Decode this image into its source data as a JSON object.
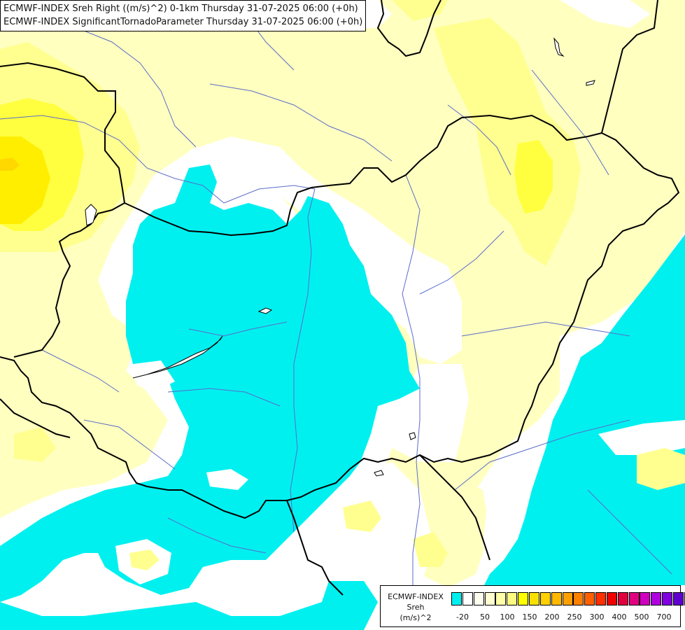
{
  "title_lines": [
    "ECMWF-INDEX Sreh Right ((m/s)^2) 0-1km Thursday 31-07-2025 06:00 (+0h)",
    "ECMWF-INDEX SignificantTornadoParameter Thursday 31-07-2025 06:00 (+0h)"
  ],
  "legend": {
    "line1": "ECMWF-INDEX",
    "line2": "Sreh",
    "line3": "(m/s)^2",
    "colors": [
      "#00f0f0",
      "#ffffff",
      "#fffff0",
      "#ffffd0",
      "#ffffa8",
      "#fffa80",
      "#ffff00",
      "#f8e000",
      "#ffd000",
      "#ffb800",
      "#ffa000",
      "#ff8000",
      "#ff6000",
      "#ff3000",
      "#f00000",
      "#e00040",
      "#e00080",
      "#d000c0",
      "#b000e0",
      "#8000e0",
      "#6000d0",
      "#3000b0",
      "#10007a"
    ],
    "ticks": [
      "-20",
      "50",
      "100",
      "150",
      "200",
      "250",
      "300",
      "400",
      "500",
      "700"
    ]
  },
  "map_colors": {
    "cyan": "#00f0f0",
    "pale_yellow": "#ffffc0",
    "light_yellow": "#ffff90",
    "yellow": "#ffff40",
    "bright_yellow": "#ffee00",
    "orange_yellow": "#ffe000",
    "border": "#000000",
    "river": "#5a6cc8"
  }
}
